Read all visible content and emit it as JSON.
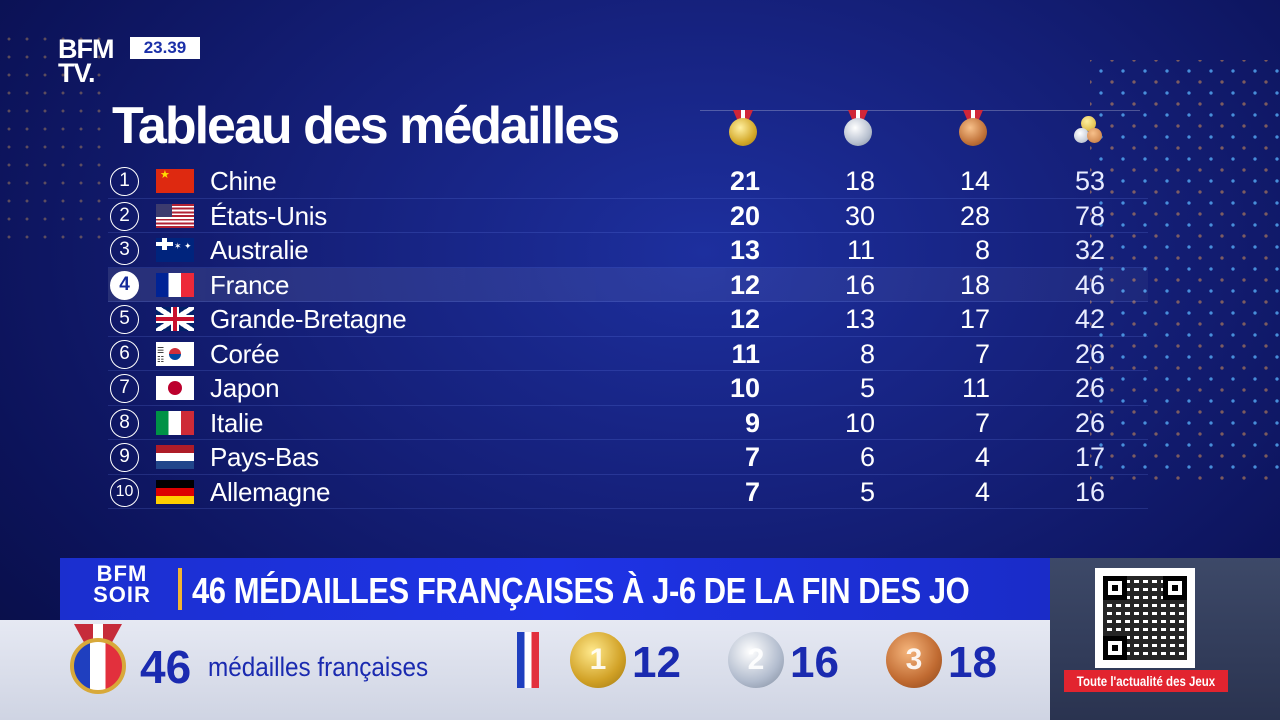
{
  "channel": {
    "logo_line1": "BFM",
    "logo_line2": "TV.",
    "clock": "23.39"
  },
  "title": "Tableau des médailles",
  "columns_icons": [
    "gold-medal-icon",
    "silver-medal-icon",
    "bronze-medal-icon",
    "total-medals-icon"
  ],
  "rows": [
    {
      "rank": "1",
      "country": "Chine",
      "flag": "cn",
      "gold": "21",
      "silver": "18",
      "bronze": "14",
      "total": "53"
    },
    {
      "rank": "2",
      "country": "États-Unis",
      "flag": "us",
      "gold": "20",
      "silver": "30",
      "bronze": "28",
      "total": "78"
    },
    {
      "rank": "3",
      "country": "Australie",
      "flag": "au",
      "gold": "13",
      "silver": "11",
      "bronze": "8",
      "total": "32"
    },
    {
      "rank": "4",
      "country": "France",
      "flag": "fr",
      "gold": "12",
      "silver": "16",
      "bronze": "18",
      "total": "46"
    },
    {
      "rank": "5",
      "country": "Grande-Bretagne",
      "flag": "gb",
      "gold": "12",
      "silver": "13",
      "bronze": "17",
      "total": "42"
    },
    {
      "rank": "6",
      "country": "Corée",
      "flag": "kr",
      "gold": "11",
      "silver": "8",
      "bronze": "7",
      "total": "26"
    },
    {
      "rank": "7",
      "country": "Japon",
      "flag": "jp",
      "gold": "10",
      "silver": "5",
      "bronze": "11",
      "total": "26"
    },
    {
      "rank": "8",
      "country": "Italie",
      "flag": "it",
      "gold": "9",
      "silver": "10",
      "bronze": "7",
      "total": "26"
    },
    {
      "rank": "9",
      "country": "Pays-Bas",
      "flag": "nl",
      "gold": "7",
      "silver": "6",
      "bronze": "4",
      "total": "17"
    },
    {
      "rank": "10",
      "country": "Allemagne",
      "flag": "de",
      "gold": "7",
      "silver": "5",
      "bronze": "4",
      "total": "16"
    }
  ],
  "highlight_rank": "4",
  "banner": {
    "show_line1": "BFM",
    "show_line2": "SOIR",
    "headline": "46 MÉDAILLES FRANÇAISES À J-6 DE LA FIN DES JO"
  },
  "strip": {
    "count": "46",
    "label": "médailles françaises",
    "gold_badge": "1",
    "gold": "12",
    "silver_badge": "2",
    "silver": "16",
    "bronze_badge": "3",
    "bronze": "18"
  },
  "side": {
    "cta": "Toute l'actualité des Jeux"
  },
  "colors": {
    "background": "#15207a",
    "banner": "#1e33e6",
    "accent": "#f2b431",
    "cta": "#e2242f"
  }
}
